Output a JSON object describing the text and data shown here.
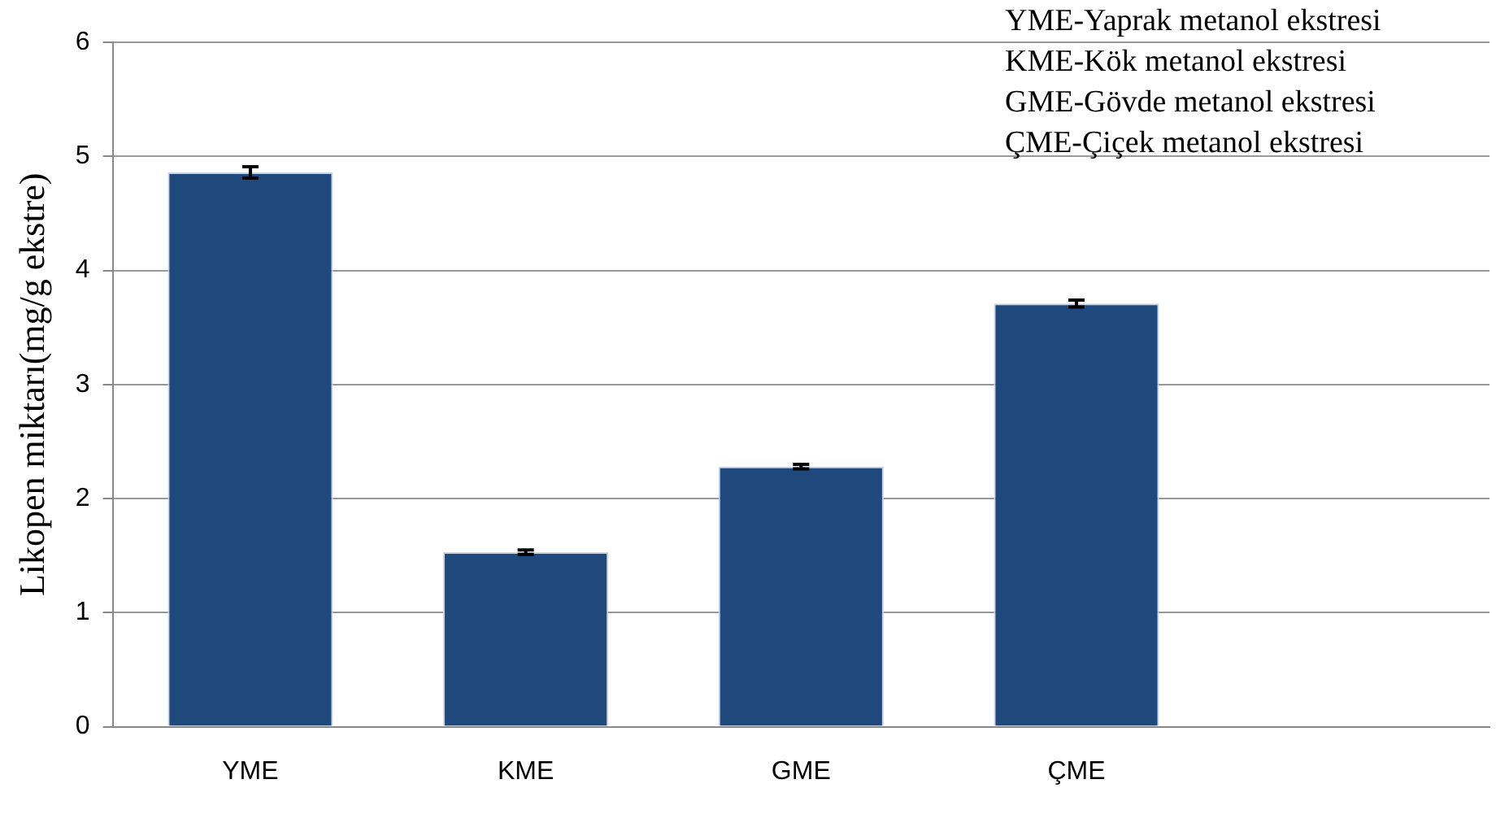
{
  "chart_data": {
    "type": "bar",
    "ylabel": "Likopen miktarı(mg/g ekstre)",
    "categories": [
      "YME",
      "KME",
      "GME",
      "ÇME",
      null
    ],
    "values": [
      4.86,
      1.53,
      2.28,
      3.71,
      null
    ],
    "errors": [
      0.05,
      0.02,
      0.02,
      0.03,
      null
    ],
    "color": "#1f497d",
    "ylim": [
      0,
      6
    ],
    "yticks": [
      0,
      1,
      2,
      3,
      4,
      5,
      6
    ],
    "grid": "y",
    "legend": false,
    "annotations": [
      "YME-Yaprak metanol ekstresi",
      "KME-Kök metanol ekstresi",
      "GME-Gövde metanol ekstresi",
      "ÇME-Çiçek metanol ekstresi"
    ]
  }
}
